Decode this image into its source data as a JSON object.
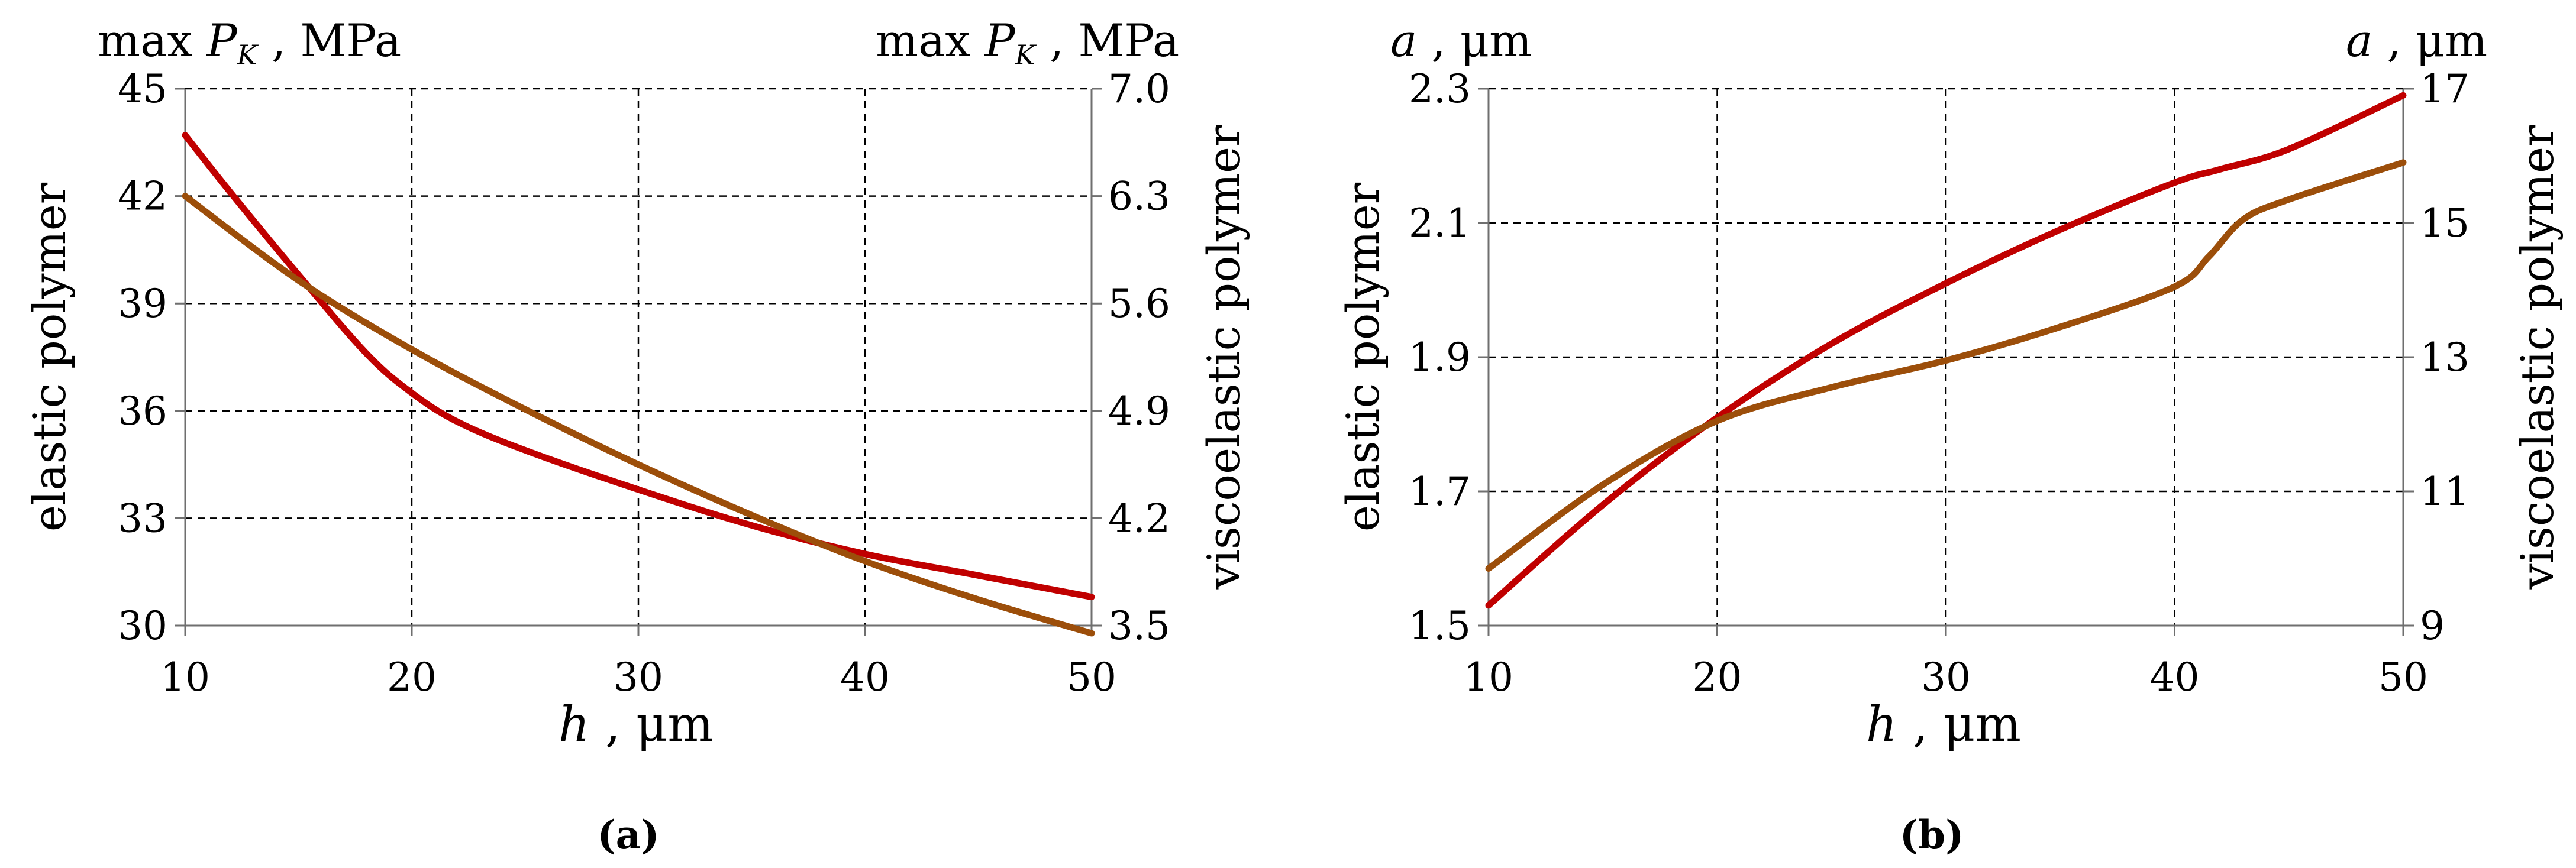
{
  "chart_data": [
    {
      "type": "line",
      "caption": "(a)",
      "xlabel_symbol": "h",
      "xlabel_unit": ", μm",
      "x_ticks": [
        "10",
        "20",
        "30",
        "40",
        "50"
      ],
      "xlim": [
        10,
        50
      ],
      "left_axis": {
        "title_prefix": "max",
        "title_symbol": "P",
        "title_subscript": "K",
        "title_unit": ", MPa",
        "side_label": "elastic polymer",
        "ylim": [
          30,
          45
        ],
        "ticks": [
          "30",
          "33",
          "36",
          "39",
          "42",
          "45"
        ]
      },
      "right_axis": {
        "title_prefix": "max",
        "title_symbol": "P",
        "title_subscript": "K",
        "title_unit": ", MPa",
        "side_label": "viscoelastic polymer",
        "ylim": [
          3.5,
          7.0
        ],
        "ticks": [
          "3.5",
          "4.2",
          "4.9",
          "5.6",
          "6.3",
          "7.0"
        ]
      },
      "series": [
        {
          "name": "elastic polymer",
          "axis": "left",
          "color": "#c00000",
          "x": [
            10,
            12,
            15,
            18,
            20,
            22,
            25,
            30,
            35,
            40,
            45,
            50
          ],
          "y": [
            43.7,
            42.1,
            39.8,
            37.6,
            36.5,
            35.7,
            34.9,
            33.8,
            32.8,
            32.0,
            31.4,
            30.8
          ]
        },
        {
          "name": "viscoelastic polymer",
          "axis": "right",
          "color": "#9c4e0a",
          "x": [
            10,
            15,
            20,
            25,
            30,
            35,
            40,
            45,
            50
          ],
          "y": [
            6.3,
            5.75,
            5.3,
            4.91,
            4.55,
            4.22,
            3.92,
            3.67,
            3.45
          ]
        }
      ]
    },
    {
      "type": "line",
      "caption": "(b)",
      "xlabel_symbol": "h",
      "xlabel_unit": ", μm",
      "x_ticks": [
        "10",
        "20",
        "30",
        "40",
        "50"
      ],
      "xlim": [
        10,
        50
      ],
      "left_axis": {
        "title_symbol": "a",
        "title_unit": ", μm",
        "side_label": "elastic polymer",
        "ylim": [
          1.5,
          2.3
        ],
        "ticks": [
          "1.5",
          "1.7",
          "1.9",
          "2.1",
          "2.3"
        ]
      },
      "right_axis": {
        "title_symbol": "a",
        "title_unit": ", μm",
        "side_label": "viscoelastic polymer",
        "ylim": [
          9,
          17
        ],
        "ticks": [
          "9",
          "11",
          "13",
          "15",
          "17"
        ]
      },
      "series": [
        {
          "name": "elastic polymer",
          "axis": "left",
          "color": "#c00000",
          "x": [
            10,
            15,
            20,
            25,
            30,
            35,
            40,
            42,
            45,
            50
          ],
          "y": [
            1.53,
            1.68,
            1.81,
            1.92,
            2.01,
            2.09,
            2.16,
            2.18,
            2.21,
            2.29
          ]
        },
        {
          "name": "viscoelastic polymer",
          "axis": "right",
          "color": "#9c4e0a",
          "x": [
            10,
            15,
            20,
            25,
            30,
            35,
            40,
            41.5,
            43,
            45,
            50
          ],
          "y": [
            9.85,
            11.1,
            12.05,
            12.55,
            12.95,
            13.45,
            14.05,
            14.5,
            15.05,
            15.35,
            15.9
          ]
        }
      ]
    }
  ]
}
